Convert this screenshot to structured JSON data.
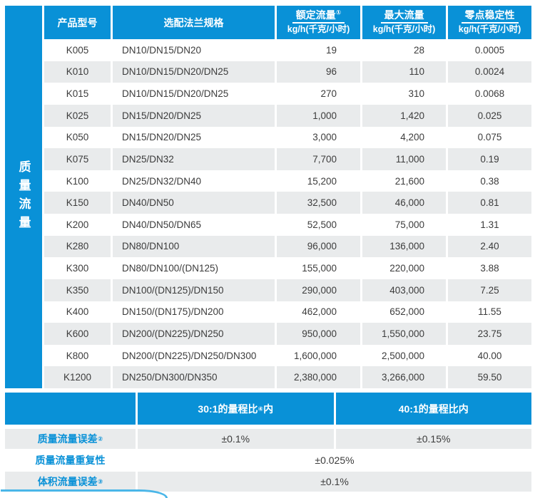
{
  "sidebar": {
    "label": "质量流量"
  },
  "table": {
    "headers": {
      "model": "产品型号",
      "flange": "选配法兰规格",
      "rated": {
        "title": "额定流量",
        "sup": "①",
        "unit": "kg/h(千克/小时)"
      },
      "max": {
        "title": "最大流量",
        "sup": "",
        "unit": "kg/h(千克/小时)"
      },
      "zero": {
        "title": "零点稳定性",
        "sup": "",
        "unit": "kg/h(千克/小时)"
      }
    },
    "rows": [
      [
        "K005",
        "DN10/DN15/DN20",
        "19",
        "28",
        "0.0005"
      ],
      [
        "K010",
        "DN10/DN15/DN20/DN25",
        "96",
        "110",
        "0.0024"
      ],
      [
        "K015",
        "DN10/DN15/DN20/DN25",
        "270",
        "310",
        "0.0068"
      ],
      [
        "K025",
        "DN15/DN20/DN25",
        "1,000",
        "1,420",
        "0.025"
      ],
      [
        "K050",
        "DN15/DN20/DN25",
        "3,000",
        "4,200",
        "0.075"
      ],
      [
        "K075",
        "DN25/DN32",
        "7,700",
        "11,000",
        "0.19"
      ],
      [
        "K100",
        "DN25/DN32/DN40",
        "15,200",
        "21,600",
        "0.38"
      ],
      [
        "K150",
        "DN40/DN50",
        "32,500",
        "46,000",
        "0.81"
      ],
      [
        "K200",
        "DN40/DN50/DN65",
        "52,500",
        "75,000",
        "1.31"
      ],
      [
        "K280",
        "DN80/DN100",
        "96,000",
        "136,000",
        "2.40"
      ],
      [
        "K300",
        "DN80/DN100/(DN125)",
        "155,000",
        "220,000",
        "3.88"
      ],
      [
        "K350",
        "DN100/(DN125)/DN150",
        "290,000",
        "403,000",
        "7.25"
      ],
      [
        "K400",
        "DN150/(DN175)/DN200",
        "462,000",
        "652,000",
        "11.55"
      ],
      [
        "K600",
        "DN200/(DN225)/DN250",
        "950,000",
        "1,550,000",
        "23.75"
      ],
      [
        "K800",
        "DN200/(DN225)/DN250/DN300",
        "1,600,000",
        "2,500,000",
        "40.00"
      ],
      [
        "K1200",
        "DN250/DN300/DN350",
        "2,380,000",
        "3,266,000",
        "59.50"
      ]
    ]
  },
  "accuracy": {
    "col1": {
      "prefix": "30:1的量程比",
      "sup": "④",
      "suffix": "内"
    },
    "col2": {
      "prefix": "40:1的量程比内",
      "sup": "",
      "suffix": ""
    },
    "rows": [
      {
        "label": "质量流量误差",
        "sup": "②",
        "values": [
          "±0.1%",
          "±0.15%"
        ]
      },
      {
        "label": "质量流量重复性",
        "sup": "",
        "values": [
          "±0.025%"
        ]
      },
      {
        "label": "体积流量误差",
        "sup": "③",
        "values": [
          "±0.1%"
        ]
      }
    ]
  },
  "colors": {
    "accent_blue": "#0991d7",
    "stripe_gray": "#e9ebec",
    "corner_cyan": "#4ab6e8",
    "text_dark": "#3c3c3c"
  }
}
